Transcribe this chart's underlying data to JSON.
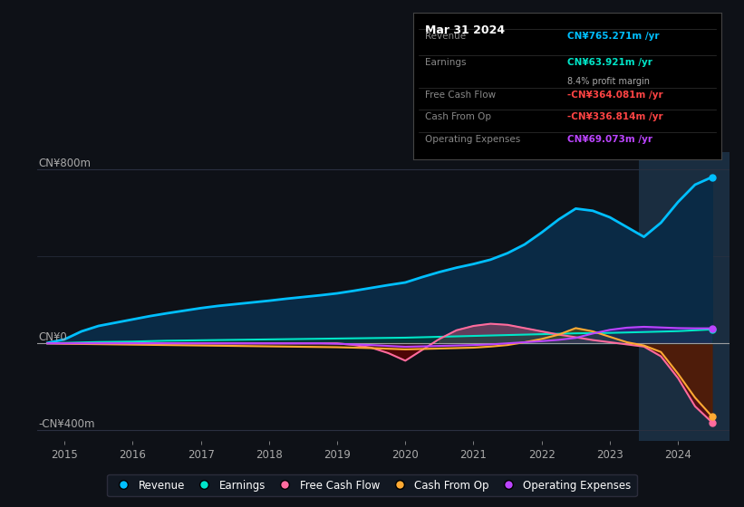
{
  "background_color": "#0e1117",
  "plot_bg_color": "#0e1117",
  "y_label_top": "CN¥800m",
  "y_label_zero": "CN¥0",
  "y_label_bottom": "-CN¥400m",
  "x_ticks": [
    2015,
    2016,
    2017,
    2018,
    2019,
    2020,
    2021,
    2022,
    2023,
    2024
  ],
  "ylim": [
    -450,
    880
  ],
  "xlim": [
    2014.6,
    2024.75
  ],
  "highlight_x_start": 2023.42,
  "highlight_x_end": 2024.75,
  "revenue_color": "#00bfff",
  "revenue_fill_color": "#0a2a45",
  "earnings_color": "#00e5c8",
  "free_cash_flow_color": "#ff6b9d",
  "cash_from_op_color": "#ffaa33",
  "op_expenses_color": "#bb44ff",
  "info": {
    "date": "Mar 31 2024",
    "revenue_label": "Revenue",
    "revenue_value": "CN¥765.271m",
    "revenue_color": "#00bfff",
    "earnings_label": "Earnings",
    "earnings_value": "CN¥63.921m",
    "earnings_color": "#00e5c8",
    "profit_margin": "8.4%",
    "free_cash_label": "Free Cash Flow",
    "free_cash_value": "-CN¥364.081m",
    "free_cash_color": "#ff4444",
    "cash_op_label": "Cash From Op",
    "cash_op_value": "-CN¥336.814m",
    "cash_op_color": "#ff4444",
    "op_exp_label": "Operating Expenses",
    "op_exp_value": "CN¥69.073m",
    "op_exp_color": "#bb44ff"
  },
  "years": [
    2014.75,
    2015.0,
    2015.25,
    2015.5,
    2015.75,
    2016.0,
    2016.25,
    2016.5,
    2016.75,
    2017.0,
    2017.25,
    2017.5,
    2017.75,
    2018.0,
    2018.25,
    2018.5,
    2018.75,
    2019.0,
    2019.25,
    2019.5,
    2019.75,
    2020.0,
    2020.25,
    2020.5,
    2020.75,
    2021.0,
    2021.25,
    2021.5,
    2021.75,
    2022.0,
    2022.25,
    2022.5,
    2022.75,
    2023.0,
    2023.25,
    2023.5,
    2023.75,
    2024.0,
    2024.25,
    2024.5
  ],
  "revenue": [
    2,
    18,
    55,
    80,
    95,
    110,
    125,
    138,
    150,
    162,
    172,
    180,
    188,
    196,
    205,
    213,
    221,
    230,
    242,
    255,
    268,
    280,
    305,
    328,
    348,
    365,
    385,
    415,
    455,
    510,
    570,
    620,
    610,
    580,
    535,
    490,
    555,
    650,
    730,
    765
  ],
  "earnings": [
    0,
    2,
    4,
    6,
    7,
    8,
    10,
    12,
    13,
    14,
    15,
    16,
    17,
    18,
    19,
    20,
    21,
    22,
    23,
    24,
    25,
    26,
    28,
    30,
    32,
    34,
    36,
    38,
    40,
    42,
    44,
    46,
    47,
    48,
    50,
    52,
    54,
    56,
    60,
    64
  ],
  "free_cash_flow": [
    0,
    0,
    0,
    0,
    0,
    0,
    0,
    0,
    0,
    0,
    0,
    0,
    0,
    0,
    0,
    0,
    0,
    0,
    -8,
    -20,
    -45,
    -80,
    -30,
    20,
    60,
    80,
    90,
    85,
    70,
    55,
    40,
    28,
    15,
    5,
    -5,
    -15,
    -60,
    -160,
    -290,
    -364
  ],
  "cash_from_op": [
    0,
    -2,
    -3,
    -4,
    -5,
    -6,
    -7,
    -8,
    -9,
    -10,
    -11,
    -12,
    -13,
    -14,
    -15,
    -16,
    -17,
    -18,
    -20,
    -22,
    -25,
    -28,
    -26,
    -24,
    -22,
    -20,
    -15,
    -8,
    5,
    20,
    40,
    70,
    55,
    30,
    5,
    -10,
    -40,
    -140,
    -250,
    -337
  ],
  "op_expenses": [
    0,
    0,
    0,
    0,
    0,
    0,
    0,
    0,
    0,
    0,
    0,
    0,
    0,
    0,
    0,
    0,
    0,
    -2,
    -5,
    -8,
    -12,
    -16,
    -14,
    -12,
    -10,
    -8,
    -5,
    0,
    5,
    10,
    16,
    25,
    45,
    62,
    72,
    76,
    73,
    70,
    69,
    69
  ]
}
